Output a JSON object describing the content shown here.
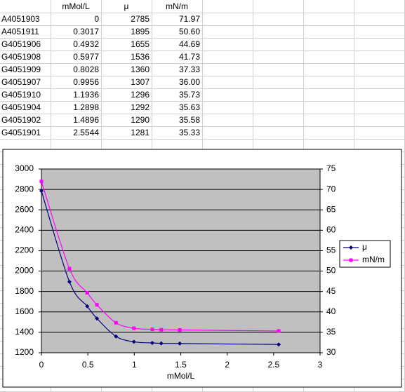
{
  "table": {
    "header": [
      "mMol/L",
      "μ",
      "mN/m"
    ],
    "rows": [
      [
        "A4051903",
        "0",
        "2785",
        "71.97"
      ],
      [
        "A4051911",
        "0.3017",
        "1895",
        "50.60"
      ],
      [
        "G4051906",
        "0.4932",
        "1655",
        "44.69"
      ],
      [
        "G4051908",
        "0.5977",
        "1536",
        "41.73"
      ],
      [
        "G4051909",
        "0.8028",
        "1360",
        "37.33"
      ],
      [
        "G4051907",
        "0.9956",
        "1307",
        "36.00"
      ],
      [
        "G4051910",
        "1.1936",
        "1296",
        "35.73"
      ],
      [
        "G4051904",
        "1.2898",
        "1292",
        "35.63"
      ],
      [
        "G4051902",
        "1.4896",
        "1290",
        "35.58"
      ],
      [
        "G4051901",
        "2.5544",
        "1281",
        "35.33"
      ]
    ]
  },
  "chart_data": {
    "type": "line",
    "x_label": "mMol/L",
    "x": [
      0,
      0.3017,
      0.4932,
      0.5977,
      0.8028,
      0.9956,
      1.1936,
      1.2898,
      1.4896,
      2.5544
    ],
    "series": [
      {
        "name": "μ",
        "color": "#000080",
        "values": [
          2785,
          1895,
          1655,
          1536,
          1360,
          1307,
          1296,
          1292,
          1290,
          1281
        ]
      },
      {
        "name": "mN/m",
        "color": "#ff00ff",
        "axis": "y2",
        "values": [
          71.97,
          50.6,
          44.69,
          41.73,
          37.33,
          36.0,
          35.73,
          35.63,
          35.58,
          35.33
        ]
      }
    ],
    "xlim": [
      0,
      3
    ],
    "xticks": [
      0,
      0.5,
      1,
      1.5,
      2,
      2.5,
      3
    ],
    "ylim": [
      1200,
      3000
    ],
    "yticks": [
      1200,
      1400,
      1600,
      1800,
      2000,
      2200,
      2400,
      2600,
      2800,
      3000
    ],
    "y2lim": [
      30,
      75
    ],
    "y2ticks": [
      30,
      35,
      40,
      45,
      50,
      55,
      60,
      65,
      70,
      75
    ],
    "grid": true,
    "legend": "right",
    "background": "#c0c0c0"
  }
}
